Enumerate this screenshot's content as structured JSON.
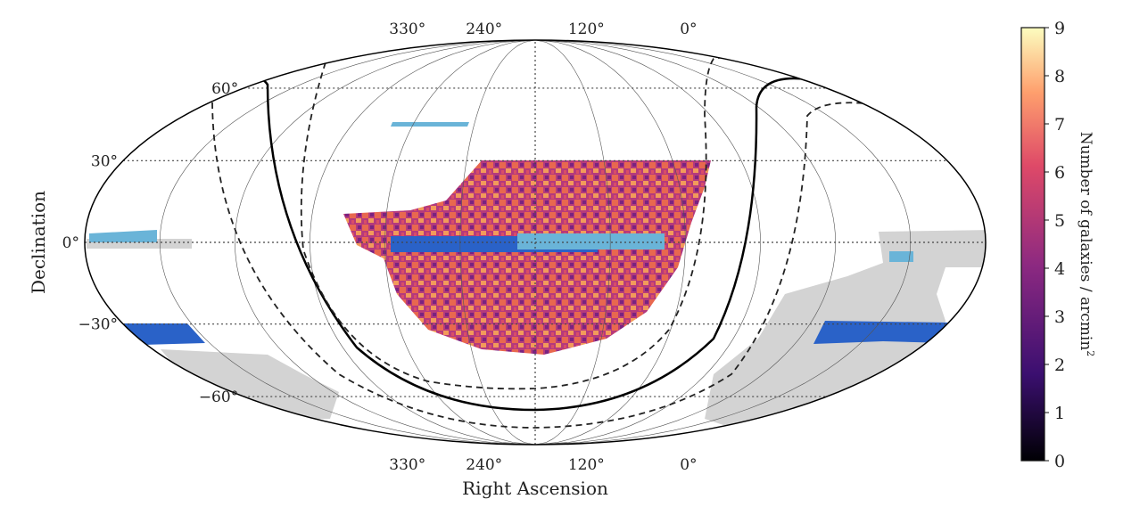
{
  "chart_data": {
    "type": "heatmap",
    "projection": "mollweide",
    "xlabel": "Right Ascension",
    "ylabel": "Declination",
    "ra_ticks": [
      330,
      240,
      120,
      0
    ],
    "ra_tick_labels": [
      "330°",
      "240°",
      "120°",
      "0°"
    ],
    "dec_ticks": [
      60,
      30,
      0,
      -30,
      -60
    ],
    "dec_tick_labels": [
      "60°",
      "30°",
      "0°",
      "−30°",
      "−60°"
    ],
    "colorbar": {
      "label": "Number of galaxies / arcmin",
      "label_superscript": "2",
      "range": [
        0,
        9
      ],
      "ticks": [
        0,
        1,
        2,
        3,
        4,
        5,
        6,
        7,
        8,
        9
      ],
      "tick_labels": [
        "0",
        "1",
        "2",
        "3",
        "4",
        "5",
        "6",
        "7",
        "8",
        "9"
      ],
      "colormap": [
        "#000004",
        "#3b0f70",
        "#8c2981",
        "#de4968",
        "#fe9f6d",
        "#fcfdbf"
      ]
    },
    "colors": {
      "survey_dark_blue": "#2a62c8",
      "survey_light_blue": "#6ab4d8",
      "survey_grey": "#d3d3d3"
    }
  }
}
